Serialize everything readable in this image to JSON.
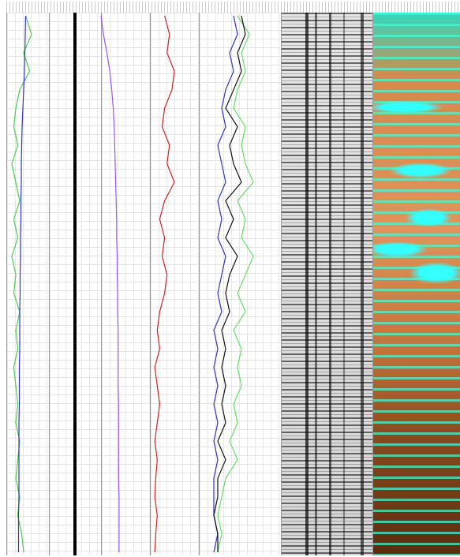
{
  "chart_data": [
    {
      "type": "line",
      "xlim": [
        0,
        100
      ],
      "series": [
        {
          "color": "#4ccc4c",
          "values": [
            45,
            60,
            40,
            55,
            30,
            20,
            15,
            25,
            10,
            20,
            30,
            15,
            25,
            10,
            20,
            15,
            30,
            20,
            25,
            15,
            20,
            25,
            20,
            30,
            25,
            20,
            30,
            25,
            35,
            40
          ]
        },
        {
          "color": "#3333cc",
          "values": [
            45,
            44,
            43,
            42,
            40,
            38,
            36,
            35,
            34,
            34,
            33,
            33,
            32,
            32,
            31,
            31,
            30,
            30,
            30,
            29,
            29,
            29,
            28,
            28,
            28,
            28,
            28,
            27,
            27,
            27
          ]
        }
      ]
    },
    {
      "type": "line",
      "xlim": [
        0,
        100
      ],
      "series": [
        {
          "color": "#9955ee",
          "values": [
            0,
            5,
            12,
            18,
            22,
            25,
            27,
            28,
            29,
            30,
            31,
            32,
            32,
            33,
            33,
            34,
            34,
            35,
            35,
            35,
            35,
            36,
            36,
            36,
            36,
            36,
            37,
            37,
            37,
            37
          ]
        }
      ]
    },
    {
      "type": "line",
      "xlim": [
        0,
        100
      ],
      "series": [
        {
          "color": "#cc2222",
          "values": [
            30,
            40,
            35,
            50,
            45,
            30,
            25,
            40,
            35,
            50,
            30,
            20,
            30,
            25,
            35,
            30,
            20,
            15,
            20,
            10,
            15,
            20,
            15,
            10,
            15,
            12,
            10,
            15,
            12,
            10
          ]
        }
      ]
    },
    {
      "type": "line",
      "xlim": [
        0,
        100
      ],
      "series": [
        {
          "color": "#66dd66",
          "values": [
            45,
            60,
            50,
            55,
            45,
            40,
            55,
            50,
            55,
            65,
            45,
            55,
            50,
            65,
            55,
            45,
            55,
            40,
            50,
            45,
            50,
            40,
            45,
            35,
            45,
            30,
            25,
            20,
            25,
            20
          ]
        },
        {
          "color": "#3333bb",
          "values": [
            40,
            45,
            35,
            40,
            30,
            25,
            30,
            20,
            25,
            30,
            20,
            25,
            20,
            30,
            25,
            20,
            25,
            15,
            20,
            15,
            20,
            15,
            20,
            15,
            20,
            15,
            15,
            15,
            20,
            15
          ]
        },
        {
          "color": "#111111",
          "values": [
            50,
            55,
            45,
            50,
            40,
            30,
            45,
            35,
            40,
            50,
            30,
            40,
            30,
            45,
            35,
            30,
            35,
            25,
            30,
            25,
            30,
            25,
            30,
            20,
            30,
            20,
            20,
            15,
            20,
            20
          ]
        }
      ]
    }
  ]
}
